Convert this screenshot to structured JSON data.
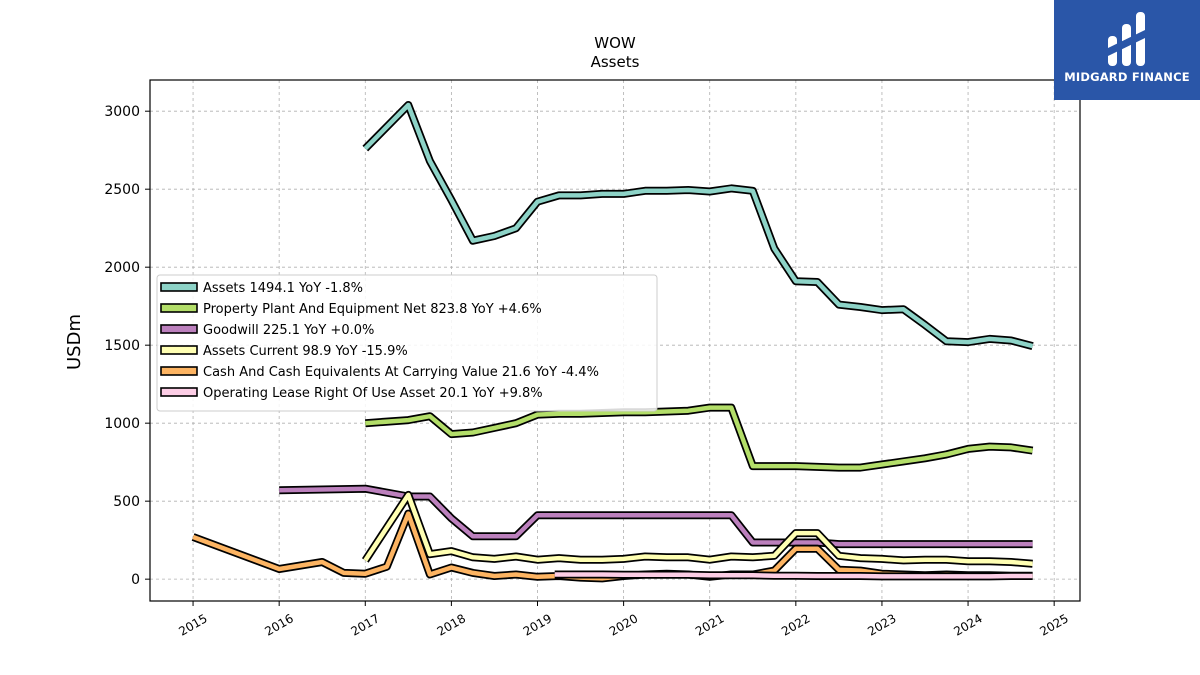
{
  "chart_data": {
    "type": "line",
    "title": "WOW",
    "subtitle": "Assets",
    "xlabel": "",
    "ylabel": "USDm",
    "xlim": [
      2014.5,
      2025.3
    ],
    "ylim": [
      -140,
      3200
    ],
    "x_ticks": [
      "2015",
      "2016",
      "2017",
      "2018",
      "2019",
      "2020",
      "2021",
      "2022",
      "2023",
      "2024",
      "2025"
    ],
    "y_ticks": [
      "0",
      "500",
      "1000",
      "1500",
      "2000",
      "2500",
      "3000"
    ],
    "grid": true,
    "legend_position": "center-left",
    "series": [
      {
        "name": "Assets",
        "legend": "Assets  1494.1 YoY -1.8%",
        "color": "#8dd3c7",
        "x": [
          2017.0,
          2017.5,
          2017.75,
          2018.0,
          2018.25,
          2018.5,
          2018.75,
          2019.0,
          2019.25,
          2019.5,
          2019.75,
          2020.0,
          2020.25,
          2020.5,
          2020.75,
          2021.0,
          2021.25,
          2021.5,
          2021.75,
          2022.0,
          2022.25,
          2022.5,
          2022.75,
          2023.0,
          2023.25,
          2023.5,
          2023.75,
          2024.0,
          2024.25,
          2024.5,
          2024.75
        ],
        "y": [
          2760,
          3040,
          2680,
          2430,
          2170,
          2200,
          2250,
          2420,
          2460,
          2460,
          2470,
          2470,
          2490,
          2490,
          2495,
          2485,
          2505,
          2490,
          2120,
          1910,
          1905,
          1760,
          1745,
          1725,
          1730,
          1630,
          1525,
          1520,
          1540,
          1530,
          1494
        ]
      },
      {
        "name": "Property Plant And Equipment Net",
        "legend": "Property Plant And Equipment Net  823.8 YoY +4.6%",
        "color": "#b3de69",
        "x": [
          2017.0,
          2017.5,
          2017.75,
          2018.0,
          2018.25,
          2018.5,
          2018.75,
          2019.0,
          2019.25,
          2019.5,
          2019.75,
          2020.0,
          2020.25,
          2020.5,
          2020.75,
          2021.0,
          2021.25,
          2021.5,
          2021.75,
          2022.0,
          2022.25,
          2022.5,
          2022.75,
          2023.0,
          2023.25,
          2023.5,
          2023.75,
          2024.0,
          2024.25,
          2024.5,
          2024.75
        ],
        "y": [
          1000,
          1020,
          1045,
          930,
          940,
          970,
          1000,
          1055,
          1060,
          1060,
          1065,
          1070,
          1070,
          1075,
          1080,
          1100,
          1100,
          725,
          725,
          725,
          720,
          715,
          715,
          735,
          755,
          775,
          800,
          835,
          850,
          845,
          824
        ]
      },
      {
        "name": "Goodwill",
        "legend": "Goodwill  225.1 YoY +0.0%",
        "color": "#bc80bd",
        "x": [
          2016.0,
          2017.0,
          2017.5,
          2017.75,
          2018.0,
          2018.25,
          2018.5,
          2018.75,
          2019.0,
          2019.25,
          2019.5,
          2019.75,
          2020.0,
          2020.25,
          2020.5,
          2020.75,
          2021.0,
          2021.25,
          2021.5,
          2021.75,
          2022.0,
          2022.25,
          2022.5,
          2022.75,
          2023.0,
          2023.25,
          2023.5,
          2023.75,
          2024.0,
          2024.25,
          2024.5,
          2024.75
        ],
        "y": [
          570,
          580,
          530,
          530,
          390,
          275,
          275,
          275,
          410,
          410,
          410,
          410,
          410,
          410,
          410,
          410,
          410,
          410,
          235,
          235,
          235,
          235,
          225,
          225,
          225,
          225,
          225,
          225,
          225,
          225,
          225,
          225
        ]
      },
      {
        "name": "Assets Current",
        "legend": "Assets Current  98.9 YoY -15.9%",
        "color": "#ffffb3",
        "x": [
          2017.0,
          2017.5,
          2017.75,
          2018.0,
          2018.25,
          2018.5,
          2018.75,
          2019.0,
          2019.25,
          2019.5,
          2019.75,
          2020.0,
          2020.25,
          2020.5,
          2020.75,
          2021.0,
          2021.25,
          2021.5,
          2021.75,
          2022.0,
          2022.25,
          2022.5,
          2022.75,
          2023.0,
          2023.25,
          2023.5,
          2023.75,
          2024.0,
          2024.25,
          2024.5,
          2024.75
        ],
        "y": [
          120,
          540,
          160,
          180,
          140,
          130,
          145,
          125,
          135,
          125,
          125,
          130,
          145,
          140,
          140,
          125,
          145,
          140,
          150,
          295,
          295,
          150,
          135,
          130,
          120,
          125,
          125,
          115,
          115,
          110,
          99
        ]
      },
      {
        "name": "Cash And Cash Equivalents At Carrying Value",
        "legend": "Cash And Cash Equivalents At Carrying Value  21.6 YoY -4.4%",
        "color": "#fdb462",
        "x": [
          2015.0,
          2016.0,
          2016.5,
          2016.75,
          2017.0,
          2017.25,
          2017.5,
          2017.75,
          2018.0,
          2018.25,
          2018.5,
          2018.75,
          2019.0,
          2019.25,
          2019.5,
          2019.75,
          2020.0,
          2020.25,
          2020.5,
          2020.75,
          2021.0,
          2021.25,
          2021.5,
          2021.75,
          2022.0,
          2022.25,
          2022.5,
          2022.75,
          2023.0,
          2023.25,
          2023.5,
          2023.75,
          2024.0,
          2024.25,
          2024.5,
          2024.75
        ],
        "y": [
          270,
          65,
          110,
          40,
          35,
          80,
          420,
          30,
          75,
          40,
          20,
          30,
          15,
          20,
          10,
          5,
          20,
          30,
          35,
          30,
          15,
          30,
          30,
          55,
          195,
          195,
          60,
          55,
          35,
          30,
          25,
          30,
          25,
          25,
          22,
          22
        ]
      },
      {
        "name": "Operating Lease Right Of Use Asset",
        "legend": "Operating Lease Right Of Use Asset  20.1 YoY +9.8%",
        "color": "#fccde5",
        "x": [
          2019.2,
          2019.5,
          2019.75,
          2020.0,
          2020.25,
          2020.5,
          2020.75,
          2021.0,
          2021.25,
          2021.5,
          2021.75,
          2022.0,
          2022.25,
          2022.5,
          2022.75,
          2023.0,
          2023.25,
          2023.5,
          2023.75,
          2024.0,
          2024.25,
          2024.5,
          2024.75
        ],
        "y": [
          30,
          30,
          30,
          28,
          28,
          28,
          28,
          25,
          25,
          25,
          22,
          22,
          20,
          20,
          20,
          18,
          18,
          18,
          18,
          18,
          18,
          20,
          20
        ]
      }
    ]
  },
  "brand": {
    "name": "MIDGARD FINANCE",
    "background": "#2a56a8"
  }
}
